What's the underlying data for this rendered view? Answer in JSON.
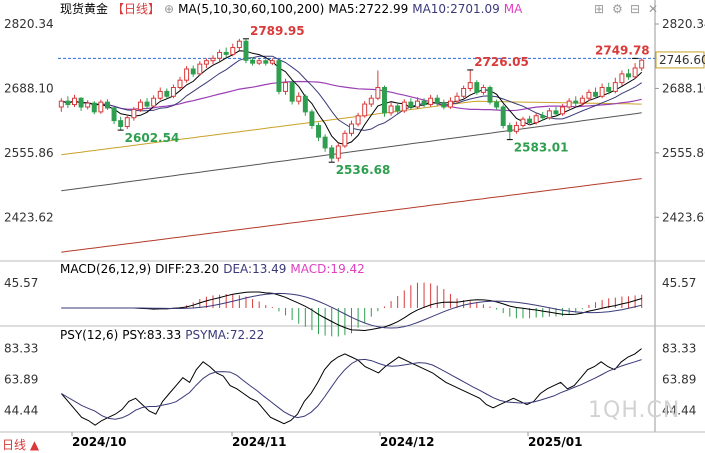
{
  "header": {
    "instrument": "现货黄金",
    "period": "【日线】",
    "ma_label": "MA(5,10,30,60,100,200)",
    "ma5": "MA5:2722.99",
    "ma10": "MA10:2701.09",
    "ma_more": "MA"
  },
  "macd": {
    "label": "MACD(26,12,9)",
    "diff": "DIFF:23.20",
    "dea": "DEA:13.49",
    "macd": "MACD:19.42"
  },
  "psy": {
    "label": "PSY(12,6)",
    "psy": "PSY:83.33",
    "psyma": "PSYMA:72.22"
  },
  "watermark": "1QH.CN",
  "colors": {
    "up": "#d93a3a",
    "down": "#2e9e4f",
    "ma5": "#000000",
    "ma10": "#3a3a7a",
    "ma30": "#c9a227",
    "ma60": "#9b3fb5",
    "ma100": "#555555",
    "ma200": "#b33a2a",
    "ref": "#2a6fd6",
    "macd_pink": "#e040c0"
  },
  "chart_data": [
    {
      "type": "candlestick",
      "title": "现货黄金【日线】",
      "x": [
        "2024/10",
        "2024/11",
        "2024/12",
        "2025/01"
      ],
      "y_ticks": [
        "2820.34",
        "2688.10",
        "2555.86",
        "2423.62"
      ],
      "ylim": [
        2340,
        2845
      ],
      "last_price": "2746.60",
      "ref_level": 2749.78,
      "annotations": [
        {
          "label": "2789.95",
          "value": 2789.95
        },
        {
          "label": "2602.54",
          "value": 2602.54
        },
        {
          "label": "2536.68",
          "value": 2536.68
        },
        {
          "label": "2726.05",
          "value": 2726.05
        },
        {
          "label": "2583.01",
          "value": 2583.01
        },
        {
          "label": "2749.78",
          "value": 2749.78
        }
      ],
      "candles": [
        [
          2650,
          2662,
          2668,
          2640
        ],
        [
          2662,
          2655,
          2672,
          2648
        ],
        [
          2655,
          2668,
          2675,
          2650
        ],
        [
          2668,
          2650,
          2670,
          2642
        ],
        [
          2650,
          2658,
          2664,
          2645
        ],
        [
          2658,
          2640,
          2662,
          2635
        ],
        [
          2640,
          2660,
          2665,
          2636
        ],
        [
          2660,
          2648,
          2666,
          2644
        ],
        [
          2648,
          2622,
          2650,
          2615
        ],
        [
          2622,
          2610,
          2630,
          2602
        ],
        [
          2610,
          2628,
          2634,
          2605
        ],
        [
          2628,
          2645,
          2650,
          2622
        ],
        [
          2645,
          2660,
          2666,
          2640
        ],
        [
          2660,
          2652,
          2668,
          2646
        ],
        [
          2652,
          2668,
          2674,
          2648
        ],
        [
          2668,
          2682,
          2690,
          2664
        ],
        [
          2682,
          2672,
          2688,
          2668
        ],
        [
          2672,
          2690,
          2696,
          2668
        ],
        [
          2690,
          2705,
          2712,
          2686
        ],
        [
          2705,
          2728,
          2734,
          2700
        ],
        [
          2728,
          2718,
          2735,
          2712
        ],
        [
          2718,
          2738,
          2744,
          2714
        ],
        [
          2738,
          2745,
          2750,
          2730
        ],
        [
          2745,
          2750,
          2756,
          2738
        ],
        [
          2750,
          2762,
          2768,
          2744
        ],
        [
          2762,
          2758,
          2772,
          2752
        ],
        [
          2758,
          2772,
          2780,
          2754
        ],
        [
          2772,
          2785,
          2790,
          2766
        ],
        [
          2785,
          2746,
          2789,
          2740
        ],
        [
          2746,
          2740,
          2752,
          2735
        ],
        [
          2740,
          2745,
          2750,
          2736
        ],
        [
          2745,
          2740,
          2748,
          2735
        ],
        [
          2740,
          2745,
          2750,
          2736
        ],
        [
          2745,
          2682,
          2746,
          2676
        ],
        [
          2682,
          2700,
          2708,
          2675
        ],
        [
          2700,
          2662,
          2704,
          2655
        ],
        [
          2662,
          2672,
          2680,
          2655
        ],
        [
          2672,
          2640,
          2676,
          2632
        ],
        [
          2640,
          2612,
          2645,
          2605
        ],
        [
          2612,
          2588,
          2618,
          2580
        ],
        [
          2588,
          2566,
          2594,
          2558
        ],
        [
          2566,
          2545,
          2572,
          2536
        ],
        [
          2545,
          2570,
          2576,
          2538
        ],
        [
          2570,
          2596,
          2602,
          2566
        ],
        [
          2596,
          2615,
          2622,
          2590
        ],
        [
          2615,
          2632,
          2638,
          2610
        ],
        [
          2632,
          2656,
          2662,
          2628
        ],
        [
          2656,
          2668,
          2675,
          2650
        ],
        [
          2668,
          2690,
          2725,
          2664
        ],
        [
          2690,
          2638,
          2694,
          2630
        ],
        [
          2638,
          2652,
          2660,
          2632
        ],
        [
          2652,
          2642,
          2660,
          2636
        ],
        [
          2642,
          2660,
          2666,
          2638
        ],
        [
          2660,
          2650,
          2668,
          2645
        ],
        [
          2650,
          2662,
          2670,
          2646
        ],
        [
          2662,
          2655,
          2668,
          2650
        ],
        [
          2655,
          2668,
          2675,
          2650
        ],
        [
          2668,
          2658,
          2675,
          2652
        ],
        [
          2658,
          2650,
          2665,
          2645
        ],
        [
          2650,
          2662,
          2670,
          2646
        ],
        [
          2662,
          2672,
          2680,
          2658
        ],
        [
          2672,
          2688,
          2694,
          2668
        ],
        [
          2688,
          2700,
          2726,
          2682
        ],
        [
          2700,
          2680,
          2705,
          2675
        ],
        [
          2680,
          2690,
          2696,
          2675
        ],
        [
          2690,
          2660,
          2694,
          2655
        ],
        [
          2660,
          2650,
          2665,
          2644
        ],
        [
          2650,
          2612,
          2655,
          2606
        ],
        [
          2612,
          2600,
          2618,
          2583
        ],
        [
          2600,
          2612,
          2620,
          2595
        ],
        [
          2612,
          2625,
          2630,
          2608
        ],
        [
          2625,
          2618,
          2632,
          2612
        ],
        [
          2618,
          2632,
          2638,
          2614
        ],
        [
          2632,
          2628,
          2640,
          2622
        ],
        [
          2628,
          2642,
          2648,
          2624
        ],
        [
          2642,
          2636,
          2650,
          2630
        ],
        [
          2636,
          2650,
          2656,
          2632
        ],
        [
          2650,
          2662,
          2668,
          2646
        ],
        [
          2662,
          2658,
          2672,
          2652
        ],
        [
          2658,
          2668,
          2674,
          2652
        ],
        [
          2668,
          2680,
          2686,
          2662
        ],
        [
          2680,
          2672,
          2690,
          2668
        ],
        [
          2672,
          2690,
          2698,
          2668
        ],
        [
          2690,
          2682,
          2700,
          2676
        ],
        [
          2682,
          2700,
          2710,
          2678
        ],
        [
          2700,
          2718,
          2725,
          2694
        ],
        [
          2718,
          2712,
          2728,
          2706
        ],
        [
          2712,
          2730,
          2740,
          2708
        ],
        [
          2730,
          2746,
          2750,
          2724
        ]
      ]
    },
    {
      "type": "macd",
      "title": "MACD(26,12,9)",
      "y_tick": "45.57",
      "diff": 23.2,
      "dea": 13.49,
      "macd": 19.42
    },
    {
      "type": "line",
      "title": "PSY(12,6)",
      "y_ticks": [
        "83.33",
        "63.89",
        "44.44"
      ],
      "ylim": [
        32,
        90
      ],
      "psy": [
        55,
        50,
        45,
        40,
        38,
        35,
        38,
        40,
        42,
        45,
        50,
        52,
        48,
        44,
        42,
        50,
        55,
        60,
        65,
        62,
        70,
        75,
        72,
        68,
        66,
        60,
        58,
        55,
        52,
        50,
        45,
        40,
        38,
        36,
        38,
        42,
        50,
        55,
        62,
        70,
        75,
        78,
        80,
        78,
        76,
        72,
        70,
        68,
        72,
        75,
        78,
        76,
        74,
        72,
        70,
        68,
        65,
        62,
        60,
        58,
        56,
        54,
        52,
        48,
        46,
        48,
        50,
        52,
        50,
        48,
        50,
        55,
        58,
        60,
        62,
        58,
        60,
        65,
        70,
        72,
        75,
        72,
        70,
        75,
        78,
        80,
        83.33
      ],
      "psyma": 72.22
    }
  ],
  "x_labels": [
    "2024/10",
    "2024/11",
    "2024/12",
    "2025/01"
  ]
}
